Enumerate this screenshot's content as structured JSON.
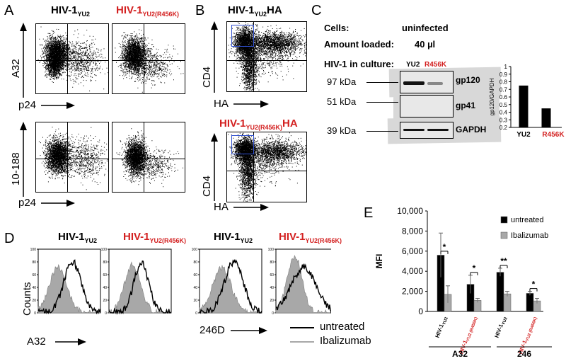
{
  "panels": {
    "A": {
      "letter": "A",
      "title_left_main": "HIV-1",
      "title_left_sub": "YU2",
      "title_right_main": "HIV-1",
      "title_right_sub": "YU2(R456K)",
      "ylabel_top": "A32",
      "xlabel_top": "p24",
      "ylabel_bottom": "10-188",
      "xlabel_bottom": "p24"
    },
    "B": {
      "letter": "B",
      "title_top_main": "HIV-1",
      "title_top_sub": "YU2",
      "title_top_suffix": "HA",
      "title_bottom_main": "HIV-1",
      "title_bottom_sub": "YU2(R456K)",
      "title_bottom_suffix": "HA",
      "ylabel": "CD4",
      "xlabel": "HA"
    },
    "C": {
      "letter": "C",
      "cells_label": "Cells:",
      "cells_value": "uninfected",
      "amount_label": "Amount loaded:",
      "amount_value": "40 µl",
      "culture_label": "HIV-1 in culture:",
      "lane1": "YU2",
      "lane2": "R456K",
      "mw1": "97 kDa",
      "mw2": "51 kDa",
      "mw3": "39 kDa",
      "band1": "gp120",
      "band2": "gp41",
      "band3": "GAPDH"
    },
    "D": {
      "letter": "D",
      "title1_main": "HIV-1",
      "title1_sub": "YU2",
      "title2_main": "HIV-1",
      "title2_sub": "YU2(R456K)",
      "title3_main": "HIV-1",
      "title3_sub": "YU2",
      "title4_main": "HIV-1",
      "title4_sub": "YU2(R456K)",
      "ylabel": "Counts",
      "xlabel_left": "A32",
      "xlabel_right": "246D",
      "legend_untreated": "untreated",
      "legend_ibalizumab": "Ibalizumab",
      "yticks": [
        "0",
        "20",
        "40",
        "60",
        "80",
        "100"
      ]
    },
    "E": {
      "letter": "E",
      "group_a32": "A32",
      "group_246": "246"
    }
  },
  "colors": {
    "red_label": "#d32020",
    "gate_blue": "#3050d0",
    "untreated": "#000000",
    "ibalizumab": "#a8a8a8"
  },
  "chart_data": [
    {
      "type": "bar",
      "id": "C-quant",
      "ylabel": "gp120/GAPDH",
      "categories": [
        "YU2",
        "R456K"
      ],
      "category_colors": [
        "#000000",
        "#d32020"
      ],
      "values": [
        0.75,
        0.45
      ],
      "ylim": [
        0.2,
        1.0
      ],
      "yticks": [
        "0.2",
        "0.3",
        "0.4",
        "0.5",
        "0.6",
        "0.7",
        "0.8",
        "0.9",
        "1"
      ]
    },
    {
      "type": "bar",
      "id": "E-mfi",
      "ylabel": "MFI",
      "ylim": [
        0,
        10000
      ],
      "yticks": [
        "0",
        "2,000",
        "4,000",
        "6,000",
        "8,000",
        "10,000"
      ],
      "categories": [
        {
          "main": "HIV-1",
          "sub": "YU2",
          "red": false
        },
        {
          "main": "HIV-1",
          "sub": "YU2 (R456K)",
          "red": true
        },
        {
          "main": "HIV-1",
          "sub": "YU2",
          "red": false
        },
        {
          "main": "HIV-1",
          "sub": "YU2 (R456K)",
          "red": true
        }
      ],
      "series": [
        {
          "name": "untreated",
          "values": [
            5600,
            2700,
            3900,
            1800
          ],
          "errors": [
            2200,
            900,
            400,
            200
          ]
        },
        {
          "name": "Ibalizumab",
          "values": [
            1700,
            1100,
            1750,
            1050
          ],
          "errors": [
            850,
            200,
            250,
            250
          ]
        }
      ],
      "significance": [
        "*",
        "*",
        "**",
        "*"
      ],
      "legend": "top-right"
    }
  ]
}
